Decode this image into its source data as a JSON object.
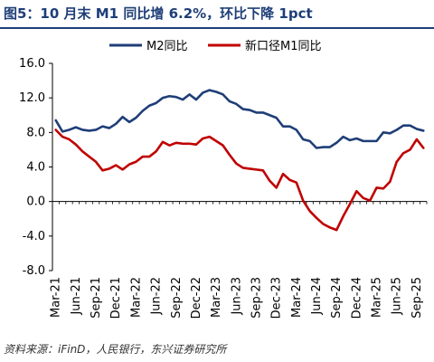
{
  "title": "图5：10 月末 M1 同比增 6.2%，环比下降 1pct",
  "source": "资料来源：iFinD，人民银行，东兴证券研究所",
  "colors": {
    "title": "#1f3e78",
    "m2": "#1f3e78",
    "m1": "#c00000",
    "axis": "#000000"
  },
  "chart_data": {
    "type": "line",
    "ylim": [
      -8.0,
      16.0
    ],
    "yticks": [
      "16.0",
      "12.0",
      "8.0",
      "4.0",
      "0.0",
      "-4.0",
      "-8.0"
    ],
    "ytick_values": [
      16,
      12,
      8,
      4,
      0,
      -4,
      -8
    ],
    "xtick_labels": [
      "Mar-21",
      "Jun-21",
      "Sep-21",
      "Dec-21",
      "Mar-22",
      "Jun-22",
      "Sep-22",
      "Dec-22",
      "Mar-23",
      "Jun-23",
      "Sep-23",
      "Dec-23",
      "Mar-24",
      "Jun-24",
      "Sep-24",
      "Dec-24",
      "Mar-25",
      "Jun-25",
      "Sep-25"
    ],
    "x": [
      "Mar-21",
      "Apr-21",
      "May-21",
      "Jun-21",
      "Jul-21",
      "Aug-21",
      "Sep-21",
      "Oct-21",
      "Nov-21",
      "Dec-21",
      "Jan-22",
      "Feb-22",
      "Mar-22",
      "Apr-22",
      "May-22",
      "Jun-22",
      "Jul-22",
      "Aug-22",
      "Sep-22",
      "Oct-22",
      "Nov-22",
      "Dec-22",
      "Jan-23",
      "Feb-23",
      "Mar-23",
      "Apr-23",
      "May-23",
      "Jun-23",
      "Jul-23",
      "Aug-23",
      "Sep-23",
      "Oct-23",
      "Nov-23",
      "Dec-23",
      "Jan-24",
      "Feb-24",
      "Mar-24",
      "Apr-24",
      "May-24",
      "Jun-24",
      "Jul-24",
      "Aug-24",
      "Sep-24",
      "Oct-24",
      "Nov-24",
      "Dec-24",
      "Jan-25",
      "Feb-25",
      "Mar-25",
      "Apr-25",
      "May-25",
      "Jun-25",
      "Jul-25",
      "Aug-25",
      "Sep-25",
      "Oct-25"
    ],
    "legend_position": "top",
    "series": [
      {
        "name": "M2同比",
        "color": "#1f3e78",
        "values": [
          9.4,
          8.1,
          8.3,
          8.6,
          8.3,
          8.2,
          8.3,
          8.7,
          8.5,
          9.0,
          9.8,
          9.2,
          9.7,
          10.5,
          11.1,
          11.4,
          12.0,
          12.2,
          12.1,
          11.8,
          12.4,
          11.8,
          12.6,
          12.9,
          12.7,
          12.4,
          11.6,
          11.3,
          10.7,
          10.6,
          10.3,
          10.3,
          10.0,
          9.7,
          8.7,
          8.7,
          8.3,
          7.2,
          7.0,
          6.2,
          6.3,
          6.3,
          6.8,
          7.5,
          7.1,
          7.3,
          7.0,
          7.0,
          7.0,
          8.0,
          7.9,
          8.3,
          8.8,
          8.8,
          8.4,
          8.2
        ]
      },
      {
        "name": "新口径M1同比",
        "color": "#c00000",
        "values": [
          8.3,
          7.5,
          7.2,
          6.6,
          5.8,
          5.2,
          4.6,
          3.6,
          3.8,
          4.2,
          3.7,
          4.3,
          4.6,
          5.2,
          5.2,
          5.8,
          6.9,
          6.5,
          6.8,
          6.7,
          6.7,
          6.6,
          7.3,
          7.5,
          7.0,
          6.5,
          5.4,
          4.4,
          3.9,
          3.8,
          3.7,
          3.6,
          2.4,
          1.6,
          3.2,
          2.5,
          2.2,
          0.1,
          -1.1,
          -1.9,
          -2.6,
          -3.0,
          -3.3,
          -1.7,
          -0.3,
          1.2,
          0.4,
          0.1,
          1.6,
          1.5,
          2.3,
          4.6,
          5.6,
          6.0,
          7.2,
          6.2
        ]
      }
    ]
  }
}
